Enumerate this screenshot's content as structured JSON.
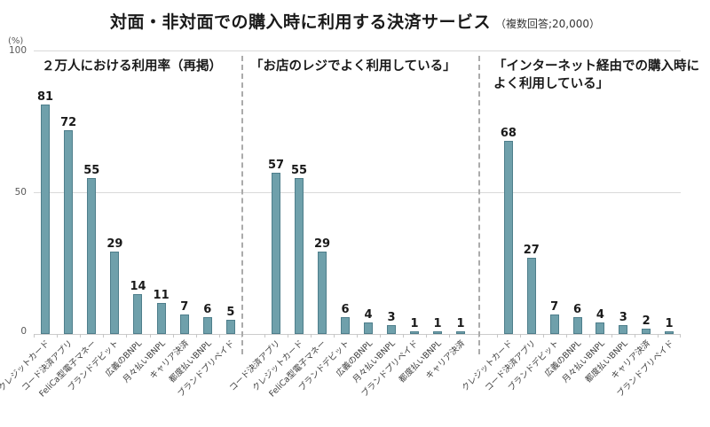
{
  "title": {
    "main": "対面・非対面での購入時に利用する決済サービス",
    "note": "（複数回答;20,000）"
  },
  "y_axis": {
    "unit_label": "(%)",
    "ticks": [
      "100",
      "50",
      "0"
    ]
  },
  "chart_data": [
    {
      "type": "bar",
      "title": "２万人における利用率（再掲）",
      "categories": [
        "クレジットカード",
        "コード決済アプリ",
        "FeliCa型電子マネー",
        "ブランドデビット",
        "広義のBNPL",
        "月々払いBNPL",
        "キャリア決済",
        "都度払いBNPL",
        "ブランドプリペイド"
      ],
      "values": [
        81,
        72,
        55,
        29,
        14,
        11,
        7,
        6,
        5
      ],
      "ylim": [
        0,
        100
      ],
      "grid": "horizontal at 0/50/100",
      "legend": "none"
    },
    {
      "type": "bar",
      "title": "「お店のレジでよく利用している」",
      "categories": [
        "コード決済アプリ",
        "クレジットカード",
        "FeliCa型電子マネー",
        "ブランドデビット",
        "広義のBNPL",
        "月々払いBNPL",
        "ブランドプリペイド",
        "都度払いBNPL",
        "キャリア決済"
      ],
      "values": [
        57,
        55,
        29,
        6,
        4,
        3,
        1,
        1,
        1
      ],
      "ylim": [
        0,
        100
      ],
      "grid": "horizontal at 0/50/100",
      "legend": "none"
    },
    {
      "type": "bar",
      "title": "「インターネット経由での購入時によく利用している」",
      "categories": [
        "クレジットカード",
        "コード決済アプリ",
        "ブランドデビット",
        "広義のBNPL",
        "月々払いBNPL",
        "都度払いBNPL",
        "キャリア決済",
        "ブランドプリペイド"
      ],
      "values": [
        68,
        27,
        7,
        6,
        4,
        3,
        2,
        1
      ],
      "ylim": [
        0,
        100
      ],
      "grid": "horizontal at 0/50/100",
      "legend": "none"
    }
  ],
  "colors": {
    "bar": "#6fa0ab",
    "bar_border": "#4e7e8b",
    "gridline": "#d9d9d9",
    "divider": "#ababab",
    "text": "#1a1a1a"
  }
}
